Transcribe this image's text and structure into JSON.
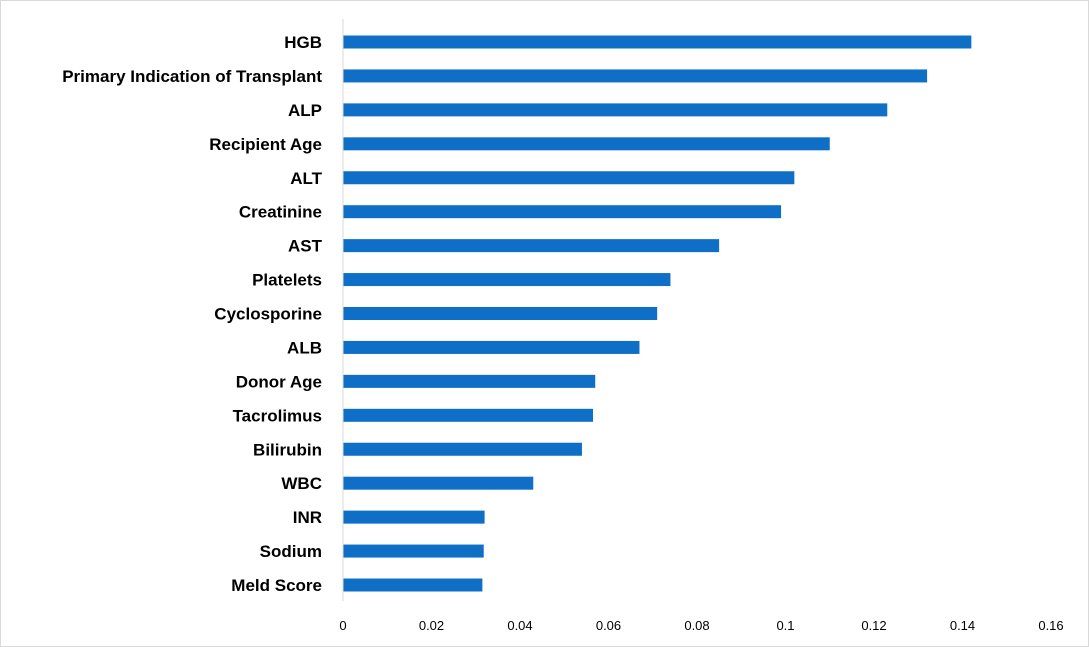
{
  "chart_data": {
    "type": "bar",
    "orientation": "horizontal",
    "title": "",
    "xlabel": "",
    "ylabel": "",
    "categories": [
      "HGB",
      "Primary Indication of Transplant",
      "ALP",
      "Recipient Age",
      "ALT",
      "Creatinine",
      "AST",
      "Platelets",
      "Cyclosporine",
      "ALB",
      "Donor Age",
      "Tacrolimus",
      "Bilirubin",
      "WBC",
      "INR",
      "Sodium",
      "Meld Score"
    ],
    "values": [
      0.142,
      0.132,
      0.123,
      0.11,
      0.102,
      0.099,
      0.085,
      0.074,
      0.071,
      0.067,
      0.057,
      0.0565,
      0.054,
      0.043,
      0.032,
      0.0318,
      0.0315
    ],
    "xlim": [
      0,
      0.16
    ],
    "x_ticks": [
      "0",
      "0.02",
      "0.04",
      "0.06",
      "0.08",
      "0.1",
      "0.12",
      "0.14",
      "0.16"
    ],
    "grid": false,
    "legend": "none",
    "bar_color": "#0f6fc6",
    "axis_color": "#d9d9d9"
  }
}
